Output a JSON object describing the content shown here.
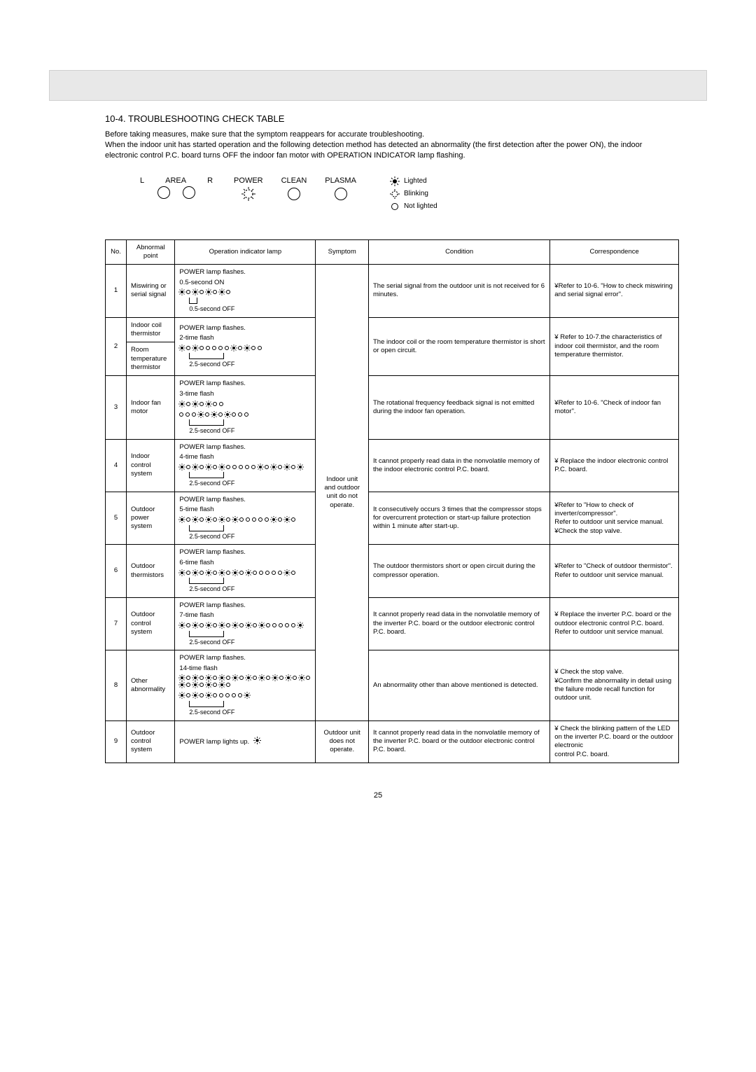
{
  "section_title": "10-4. TROUBLESHOOTING CHECK TABLE",
  "intro": "Before taking measures, make sure that the symptom reappears for accurate troubleshooting.\nWhen the indoor unit has started operation and the following detection method has detected an abnormality (the first detection after the power ON), the indoor electronic control P.C. board turns OFF the indoor fan motor with OPERATION INDICATOR lamp flashing.",
  "legend": {
    "area": {
      "L": "L",
      "AREA": "AREA",
      "R": "R"
    },
    "lamps": [
      "POWER",
      "CLEAN",
      "PLASMA"
    ],
    "keys": {
      "lighted": "Lighted",
      "blinking": "Blinking",
      "notlighted": "Not lighted"
    }
  },
  "headers": {
    "no": "No.",
    "abnormal": "Abnormal point",
    "op": "Operation indicator lamp",
    "symptom": "Symptom",
    "condition": "Condition",
    "correspondence": "Correspondence"
  },
  "symptom_a": "Indoor unit and outdoor unit do not operate.",
  "symptom_b": "Outdoor unit does not operate.",
  "rows": [
    {
      "no": "1",
      "ab": "Miswiring or serial signal",
      "op_title": "POWER lamp flashes.",
      "op_sub": "0.5-second ON",
      "pattern": "+o+o+o+o",
      "off": "0.5-second OFF",
      "bracket_w": 12,
      "cond": "The serial signal from the outdoor unit is not received for 6 minutes.",
      "corr": "¥Refer to 10-6.    \"How to check miswiring and serial signal error\"."
    },
    {
      "no": "2",
      "ab_split": [
        "Indoor coil thermistor",
        "Room temperature thermistor"
      ],
      "op_title": "POWER lamp flashes.",
      "op_sub": "2-time flash",
      "pattern": "+o+ooooo+o+oo",
      "off": "2.5-second OFF",
      "bracket_w": 50,
      "cond": "The indoor coil or the room temperature thermistor is short or open circuit.",
      "corr": "¥ Refer to 10-7.the characteristics of indoor coil thermistor, and the room temperature thermistor."
    },
    {
      "no": "3",
      "ab": "Indoor fan motor",
      "op_title": "POWER lamp flashes.",
      "op_sub": "3-time flash",
      "pattern": "+o+o+oo ooo+o+o+ooo",
      "off": "2.5-second OFF",
      "bracket_w": 50,
      "cond": "The rotational frequency feedback signal is not emitted during the indoor fan operation.",
      "corr": "¥Refer to 10-6.    \"Check  of indoor fan motor\"."
    },
    {
      "no": "4",
      "ab": "Indoor control system",
      "op_title": "POWER lamp flashes.",
      "op_sub": "4-time flash",
      "pattern": "+o+o+o+ooooo+o+o+o+",
      "off": "2.5-second OFF",
      "bracket_w": 50,
      "cond": "It cannot properly read data in the nonvolatile memory of the indoor electronic control P.C. board.",
      "corr": "¥ Replace the indoor electronic control P.C. board."
    },
    {
      "no": "5",
      "ab": "Outdoor power system",
      "op_title": "POWER lamp flashes.",
      "op_sub": "5-time flash",
      "pattern": "+o+o+o+o+ooooo+o+o",
      "off": "2.5-second OFF",
      "bracket_w": 50,
      "cond": "It consecutively occurs 3 times that the compressor stops for overcurrent protection or start-up failure protection within 1 minute after start-up.",
      "corr": "¥Refer to \"How to check of inverter/compressor\".\nRefer to outdoor unit service manual.\n¥Check the stop valve."
    },
    {
      "no": "6",
      "ab": "Outdoor thermistors",
      "op_title": "POWER lamp flashes.",
      "op_sub": "6-time flash",
      "pattern": "+o+o+o+o+o+ooooo+o",
      "off": "2.5-second OFF",
      "bracket_w": 50,
      "cond": "The outdoor thermistors short or open circuit during the compressor operation.",
      "corr": "¥Refer to \"Check of outdoor thermistor\".\nRefer to outdoor unit service manual."
    },
    {
      "no": "7",
      "ab": "Outdoor control system",
      "op_title": "POWER lamp flashes.",
      "op_sub": "7-time flash",
      "pattern": "+o+o+o+o+o+o+ooooo+",
      "off": "2.5-second OFF",
      "bracket_w": 50,
      "cond": "It cannot properly read data in the nonvolatile memory of the inverter P.C. board or the outdoor electronic control P.C. board.",
      "corr": "¥ Replace the inverter P.C. board or the outdoor electronic control P.C. board.\nRefer to outdoor unit service manual."
    },
    {
      "no": "8",
      "ab": "Other abnormality",
      "op_title": "POWER lamp flashes.",
      "op_sub": "14-time flash",
      "pattern": "+o+o+o+o+o+o+o+o+o+o+o+o+o+o +o+o+ooooo+",
      "off": "2.5-second OFF",
      "bracket_w": 50,
      "cond": "An abnormality other than above mentioned is detected.",
      "corr": "¥ Check the stop valve.\n¥Confirm the abnormality in detail using the failure mode recall function for outdoor unit."
    },
    {
      "no": "9",
      "ab": "Outdoor control system",
      "op_title": "",
      "op_sub": "",
      "pattern": "",
      "off": "",
      "special": "POWER lamp lights up.",
      "cond": "It cannot properly read data in the nonvolatile memory of the inverter P.C. board or the outdoor electronic control P.C. board.",
      "corr": "¥ Check the blinking pattern of the LED on the inverter P.C. board or the outdoor electronic\ncontrol P.C. board."
    }
  ],
  "page": "25"
}
